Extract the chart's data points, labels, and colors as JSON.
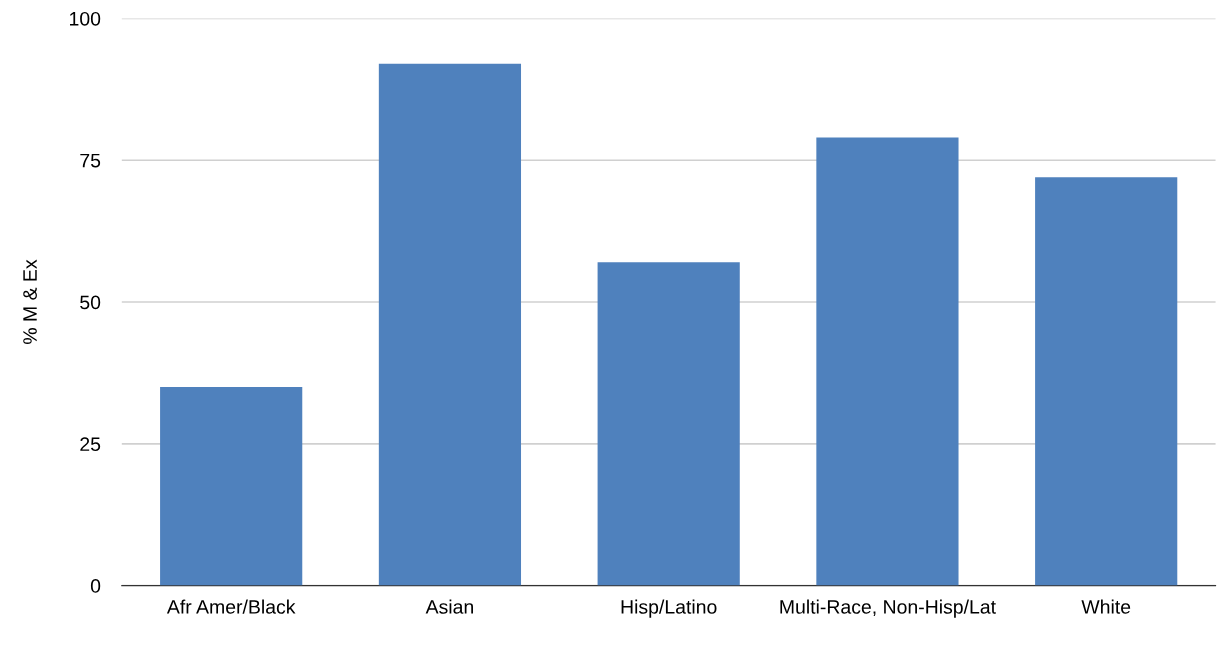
{
  "chart_data": {
    "type": "bar",
    "ylabel": "% M & Ex",
    "categories": [
      "Afr Amer/Black",
      "Asian",
      "Hisp/Latino",
      "Multi-Race, Non-Hisp/Lat",
      "White"
    ],
    "values": [
      35,
      92,
      57,
      79,
      72
    ],
    "color": "#4f81bd",
    "ylim": [
      0,
      100
    ],
    "yticks": [
      0,
      25,
      50,
      75,
      100
    ],
    "grid": "y",
    "legend": false
  }
}
